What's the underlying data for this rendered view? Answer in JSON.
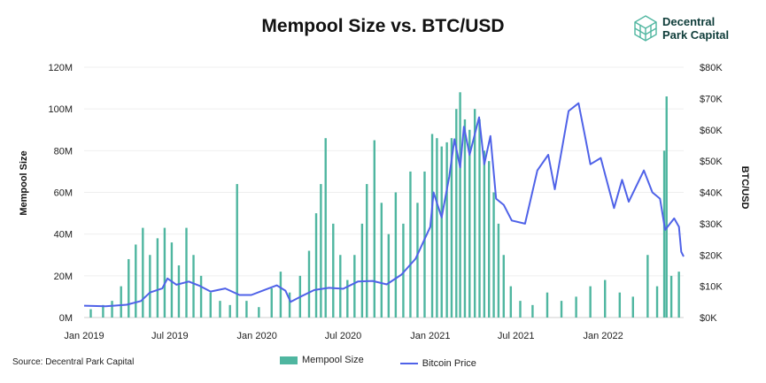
{
  "logo": {
    "line1": "Decentral",
    "line2": "Park Capital"
  },
  "source": "Source: Decentral Park Capital",
  "colors": {
    "mempool": "#4fb6a0",
    "btc": "#4f62e8",
    "logo": "#4fb6a0"
  },
  "chart_data": {
    "type": "bar+line",
    "title": "Mempool Size vs. BTC/USD",
    "ylabel_left": "Mempool Size",
    "ylabel_right": "BTC/USD",
    "ylim_left": [
      0,
      120000000
    ],
    "ylim_right": [
      0,
      80000
    ],
    "yticks_left": [
      "0M",
      "20M",
      "40M",
      "60M",
      "80M",
      "100M",
      "120M"
    ],
    "yticks_right": [
      "$0K",
      "$10K",
      "$20K",
      "$30K",
      "$40K",
      "$50K",
      "$60K",
      "$70K",
      "$80K"
    ],
    "xlim": [
      "2019-01-01",
      "2022-06-20"
    ],
    "xticks": [
      {
        "date": "2019-01-01",
        "label": "Jan 2019"
      },
      {
        "date": "2019-07-01",
        "label": "Jul 2019"
      },
      {
        "date": "2020-01-01",
        "label": "Jan 2020"
      },
      {
        "date": "2020-07-01",
        "label": "Jul 2020"
      },
      {
        "date": "2021-01-01",
        "label": "Jan 2021"
      },
      {
        "date": "2021-07-01",
        "label": "Jul 2021"
      },
      {
        "date": "2022-01-01",
        "label": "Jan 2022"
      }
    ],
    "grid": true,
    "legend_position": "bottom",
    "series": [
      {
        "name": "Mempool Size",
        "kind": "bar",
        "axis": "left",
        "points": [
          [
            "2019-01-15",
            4000000
          ],
          [
            "2019-02-10",
            6000000
          ],
          [
            "2019-03-01",
            8000000
          ],
          [
            "2019-03-20",
            15000000
          ],
          [
            "2019-04-05",
            28000000
          ],
          [
            "2019-04-20",
            35000000
          ],
          [
            "2019-05-05",
            43000000
          ],
          [
            "2019-05-20",
            30000000
          ],
          [
            "2019-06-05",
            38000000
          ],
          [
            "2019-06-20",
            43000000
          ],
          [
            "2019-07-05",
            36000000
          ],
          [
            "2019-07-20",
            25000000
          ],
          [
            "2019-08-05",
            43000000
          ],
          [
            "2019-08-20",
            30000000
          ],
          [
            "2019-09-05",
            20000000
          ],
          [
            "2019-09-25",
            12000000
          ],
          [
            "2019-10-15",
            8000000
          ],
          [
            "2019-11-05",
            6000000
          ],
          [
            "2019-11-20",
            64000000
          ],
          [
            "2019-12-10",
            8000000
          ],
          [
            "2020-01-05",
            5000000
          ],
          [
            "2020-02-01",
            14000000
          ],
          [
            "2020-02-20",
            22000000
          ],
          [
            "2020-03-10",
            12000000
          ],
          [
            "2020-04-01",
            20000000
          ],
          [
            "2020-04-20",
            32000000
          ],
          [
            "2020-05-05",
            50000000
          ],
          [
            "2020-05-15",
            64000000
          ],
          [
            "2020-05-25",
            86000000
          ],
          [
            "2020-06-10",
            45000000
          ],
          [
            "2020-06-25",
            30000000
          ],
          [
            "2020-07-10",
            18000000
          ],
          [
            "2020-07-25",
            30000000
          ],
          [
            "2020-08-10",
            45000000
          ],
          [
            "2020-08-20",
            64000000
          ],
          [
            "2020-09-05",
            85000000
          ],
          [
            "2020-09-20",
            55000000
          ],
          [
            "2020-10-05",
            40000000
          ],
          [
            "2020-10-20",
            60000000
          ],
          [
            "2020-11-05",
            45000000
          ],
          [
            "2020-11-20",
            70000000
          ],
          [
            "2020-12-05",
            55000000
          ],
          [
            "2020-12-20",
            70000000
          ],
          [
            "2021-01-05",
            88000000
          ],
          [
            "2021-01-15",
            86000000
          ],
          [
            "2021-01-25",
            82000000
          ],
          [
            "2021-02-05",
            84000000
          ],
          [
            "2021-02-15",
            86000000
          ],
          [
            "2021-02-25",
            100000000
          ],
          [
            "2021-03-05",
            108000000
          ],
          [
            "2021-03-15",
            95000000
          ],
          [
            "2021-03-25",
            90000000
          ],
          [
            "2021-04-05",
            100000000
          ],
          [
            "2021-04-15",
            95000000
          ],
          [
            "2021-04-25",
            80000000
          ],
          [
            "2021-05-05",
            75000000
          ],
          [
            "2021-05-15",
            60000000
          ],
          [
            "2021-05-25",
            45000000
          ],
          [
            "2021-06-05",
            30000000
          ],
          [
            "2021-06-20",
            15000000
          ],
          [
            "2021-07-10",
            8000000
          ],
          [
            "2021-08-05",
            6000000
          ],
          [
            "2021-09-05",
            12000000
          ],
          [
            "2021-10-05",
            8000000
          ],
          [
            "2021-11-05",
            10000000
          ],
          [
            "2021-12-05",
            15000000
          ],
          [
            "2022-01-05",
            18000000
          ],
          [
            "2022-02-05",
            12000000
          ],
          [
            "2022-03-05",
            10000000
          ],
          [
            "2022-04-05",
            30000000
          ],
          [
            "2022-04-25",
            15000000
          ],
          [
            "2022-05-10",
            80000000
          ],
          [
            "2022-05-15",
            106000000
          ],
          [
            "2022-05-25",
            20000000
          ],
          [
            "2022-06-10",
            22000000
          ]
        ]
      },
      {
        "name": "Bitcoin Price",
        "kind": "line",
        "axis": "right",
        "points": [
          [
            "2019-01-01",
            3800
          ],
          [
            "2019-02-15",
            3600
          ],
          [
            "2019-04-01",
            4100
          ],
          [
            "2019-05-01",
            5300
          ],
          [
            "2019-05-20",
            8000
          ],
          [
            "2019-06-15",
            9300
          ],
          [
            "2019-06-26",
            12500
          ],
          [
            "2019-07-15",
            10500
          ],
          [
            "2019-08-10",
            11500
          ],
          [
            "2019-09-01",
            10200
          ],
          [
            "2019-09-25",
            8300
          ],
          [
            "2019-10-26",
            9300
          ],
          [
            "2019-11-25",
            7200
          ],
          [
            "2019-12-20",
            7200
          ],
          [
            "2020-01-15",
            8700
          ],
          [
            "2020-02-12",
            10300
          ],
          [
            "2020-03-01",
            8600
          ],
          [
            "2020-03-12",
            5000
          ],
          [
            "2020-04-01",
            6600
          ],
          [
            "2020-05-01",
            8800
          ],
          [
            "2020-06-01",
            9500
          ],
          [
            "2020-07-01",
            9200
          ],
          [
            "2020-08-01",
            11500
          ],
          [
            "2020-09-01",
            11700
          ],
          [
            "2020-10-01",
            10600
          ],
          [
            "2020-11-01",
            13700
          ],
          [
            "2020-12-01",
            18800
          ],
          [
            "2021-01-01",
            29000
          ],
          [
            "2021-01-08",
            40000
          ],
          [
            "2021-01-25",
            32000
          ],
          [
            "2021-02-10",
            45000
          ],
          [
            "2021-02-21",
            57000
          ],
          [
            "2021-03-05",
            48000
          ],
          [
            "2021-03-13",
            61000
          ],
          [
            "2021-03-25",
            52000
          ],
          [
            "2021-04-14",
            64000
          ],
          [
            "2021-04-25",
            49000
          ],
          [
            "2021-05-08",
            58000
          ],
          [
            "2021-05-20",
            38000
          ],
          [
            "2021-06-05",
            36000
          ],
          [
            "2021-06-22",
            31000
          ],
          [
            "2021-07-20",
            30000
          ],
          [
            "2021-08-15",
            47000
          ],
          [
            "2021-09-07",
            52000
          ],
          [
            "2021-09-21",
            41000
          ],
          [
            "2021-10-20",
            66000
          ],
          [
            "2021-11-10",
            68500
          ],
          [
            "2021-11-25",
            57000
          ],
          [
            "2021-12-05",
            49000
          ],
          [
            "2021-12-27",
            51000
          ],
          [
            "2022-01-24",
            35000
          ],
          [
            "2022-02-10",
            44000
          ],
          [
            "2022-02-24",
            37000
          ],
          [
            "2022-03-28",
            47000
          ],
          [
            "2022-04-15",
            40000
          ],
          [
            "2022-05-01",
            38000
          ],
          [
            "2022-05-12",
            28000
          ],
          [
            "2022-05-31",
            31700
          ],
          [
            "2022-06-10",
            29000
          ],
          [
            "2022-06-15",
            21000
          ],
          [
            "2022-06-20",
            19500
          ]
        ]
      }
    ]
  }
}
